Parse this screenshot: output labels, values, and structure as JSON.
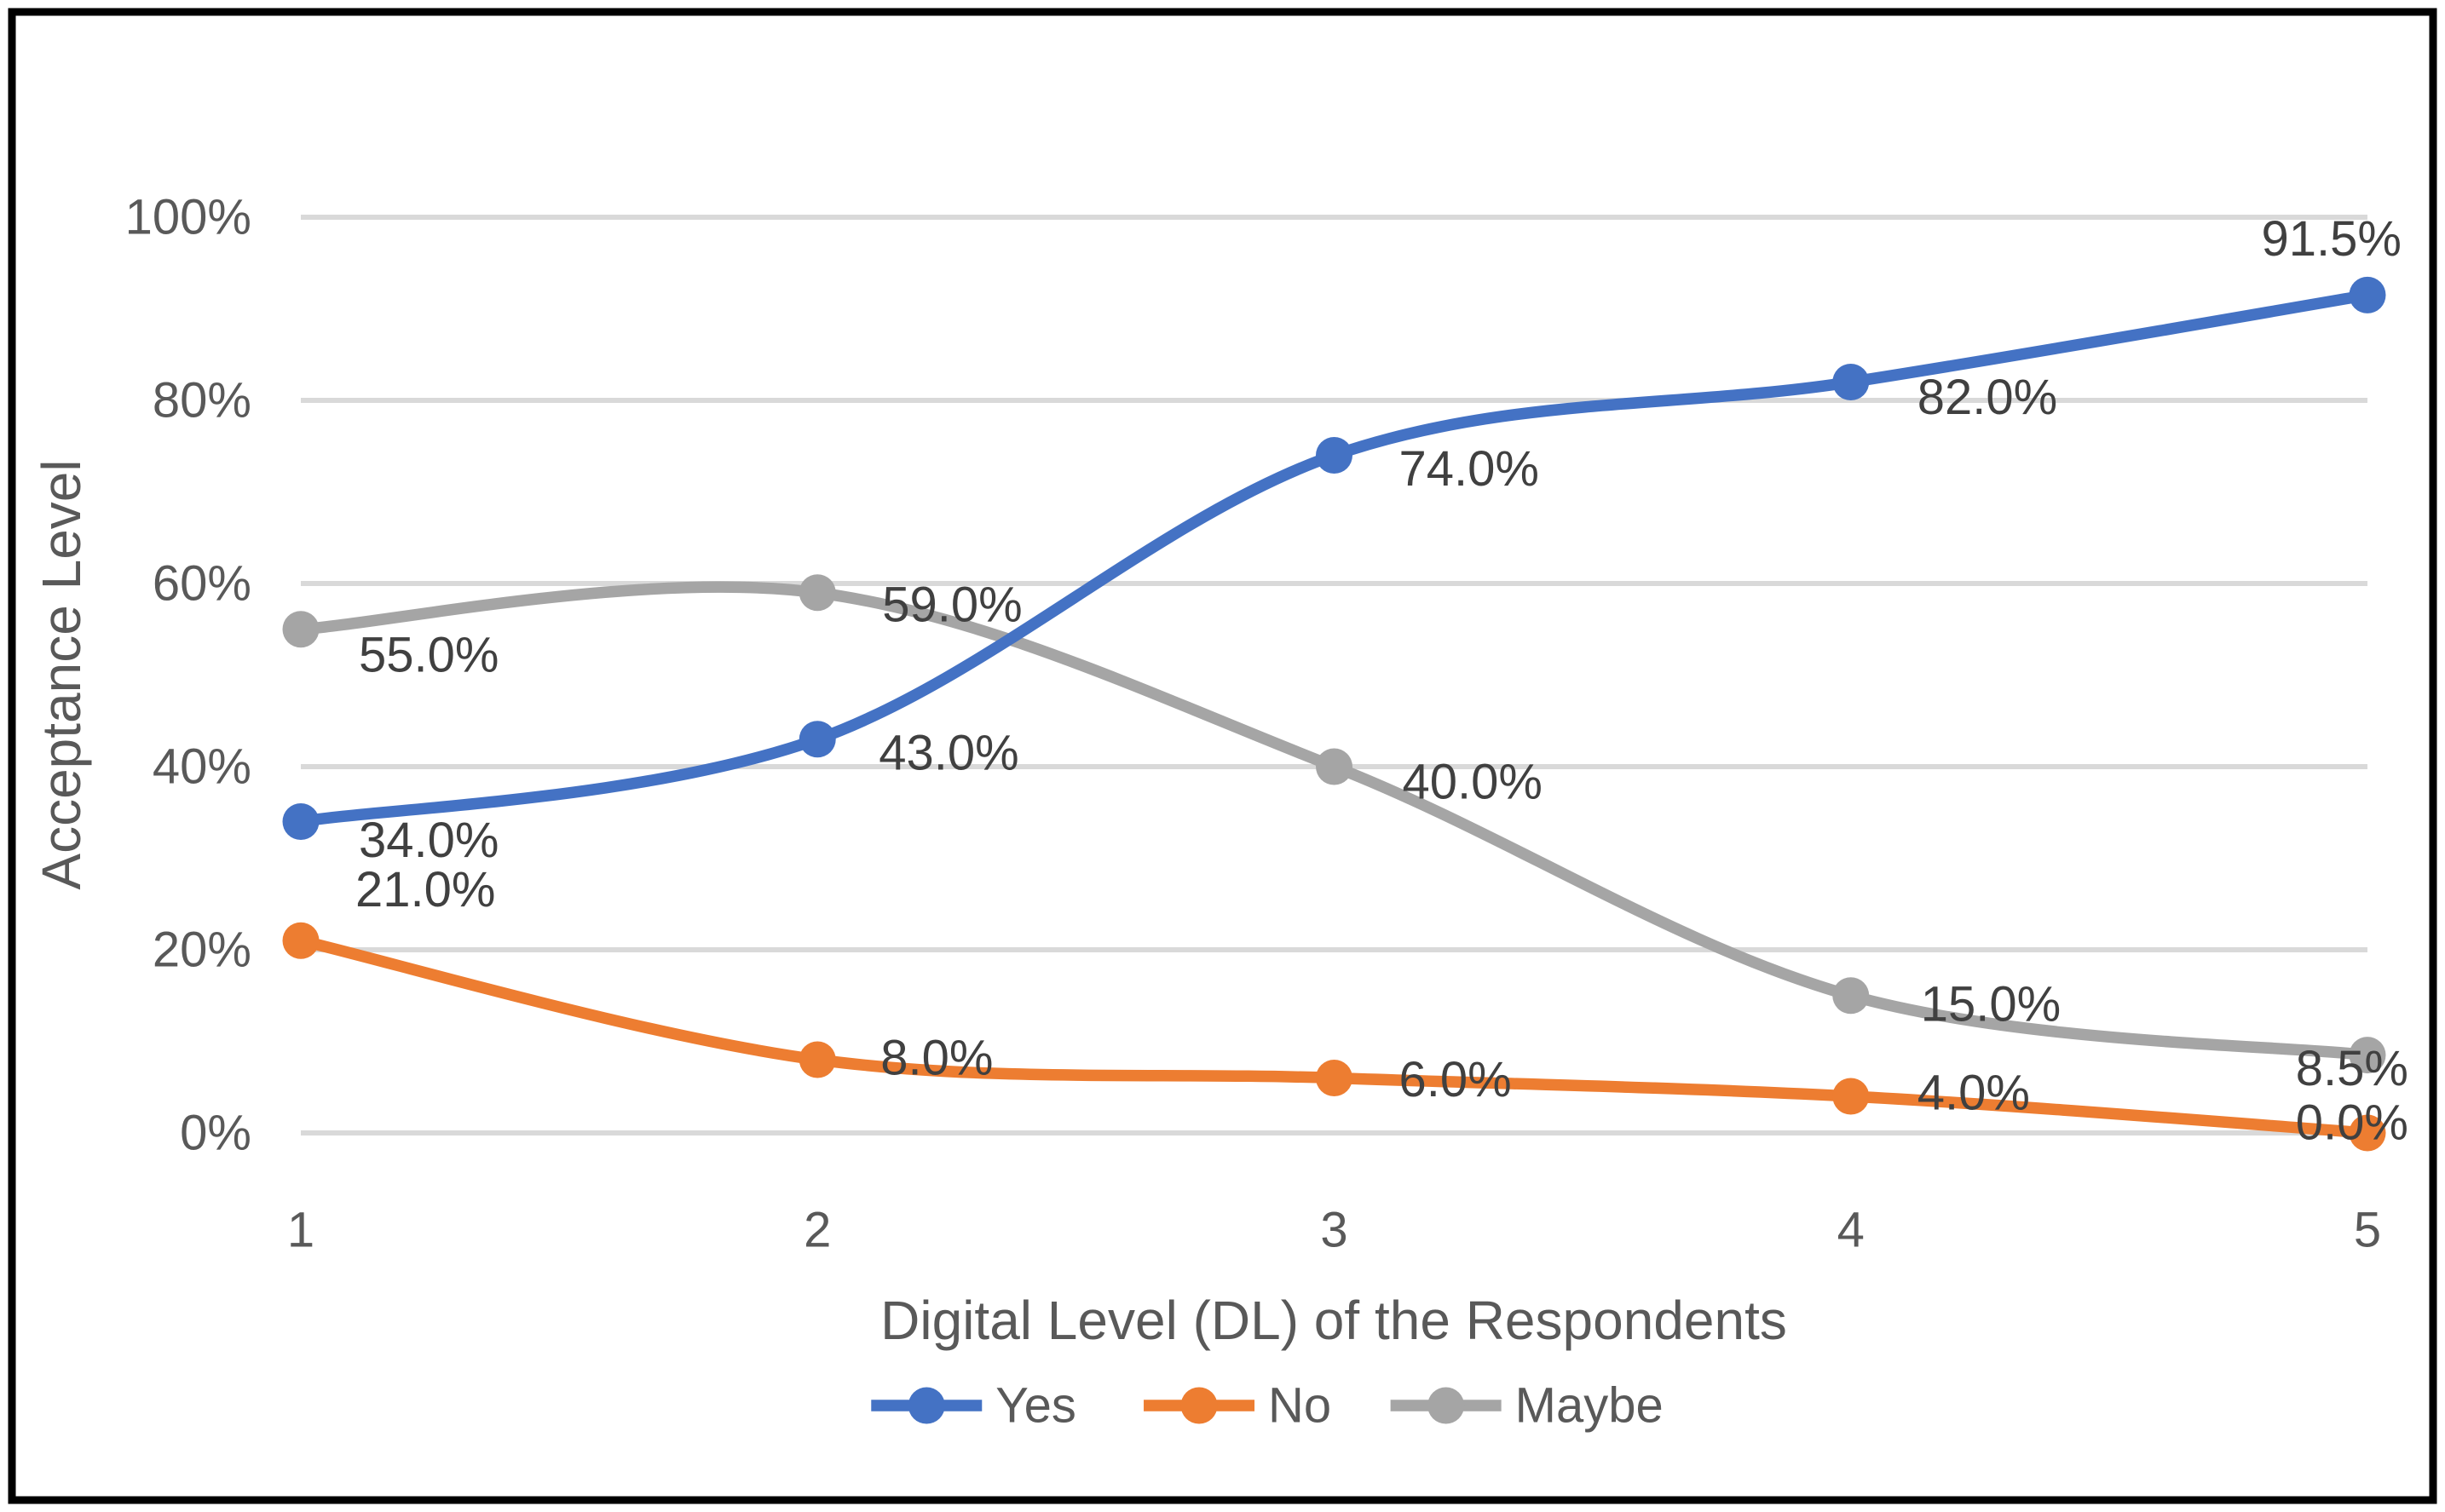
{
  "chart_data": {
    "type": "line",
    "title": "",
    "xlabel": "Digital Level (DL) of the Respondents",
    "ylabel": "Acceptance Level",
    "x": [
      1,
      2,
      3,
      4,
      5
    ],
    "series": [
      {
        "name": "Yes",
        "color": "#4472C4",
        "values": [
          34.0,
          43.0,
          74.0,
          82.0,
          91.5
        ],
        "labels": [
          "34.0%",
          "43.0%",
          "74.0%",
          "82.0%",
          "91.5%"
        ]
      },
      {
        "name": "No",
        "color": "#ED7D31",
        "values": [
          21.0,
          8.0,
          6.0,
          4.0,
          0.0
        ],
        "labels": [
          "21.0%",
          "8.0%",
          "6.0%",
          "4.0%",
          "0.0%"
        ]
      },
      {
        "name": "Maybe",
        "color": "#A5A5A5",
        "values": [
          55.0,
          59.0,
          40.0,
          15.0,
          8.5
        ],
        "labels": [
          "55.0%",
          "59.0%",
          "40.0%",
          "15.0%",
          "8.5%"
        ]
      }
    ],
    "y_ticks": [
      "0%",
      "20%",
      "40%",
      "60%",
      "80%",
      "100%"
    ],
    "ylim": [
      0,
      100
    ],
    "grid": true,
    "smooth": true,
    "legend_position": "bottom",
    "colors": {
      "gridline": "#D9D9D9",
      "axis_text": "#595959",
      "data_label_text": "#404040",
      "border": "#000000",
      "background": "#FFFFFF"
    }
  }
}
